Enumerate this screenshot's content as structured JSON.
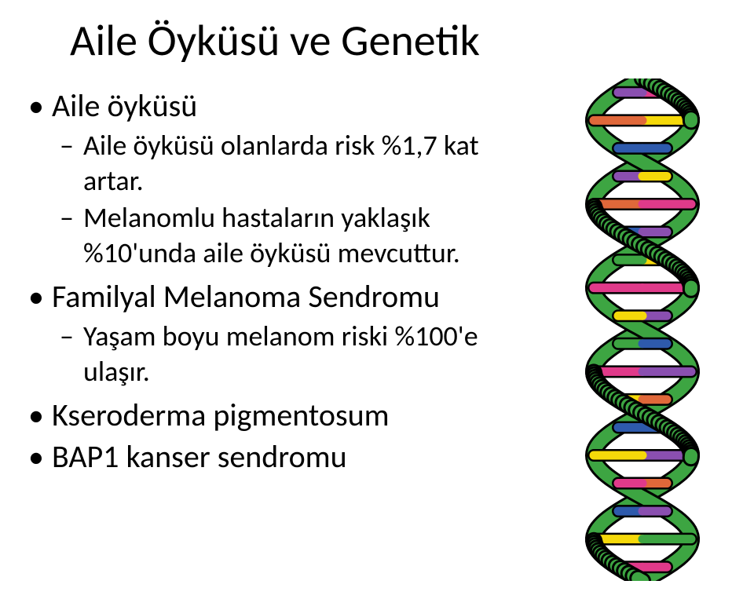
{
  "title": "Aile Öyküsü ve Genetik",
  "items": {
    "b1": "Aile öyküsü",
    "b1a": "Aile öyküsü olanlarda risk %1,7 kat artar.",
    "b1b": "Melanomlu hastaların yaklaşık %10'unda aile öyküsü mevcuttur.",
    "b2": "Familyal Melanoma Sendromu",
    "b2a": "Yaşam boyu  melanom  riski %100'e ulaşır.",
    "b3": "Kseroderma pigmentosum",
    "b4": "BAP1 kanser sendromu"
  },
  "dna": {
    "backbone_colors": [
      "#3da542",
      "#3da542"
    ],
    "rung_colors": [
      "#e03a8a",
      "#f5d90a",
      "#2e5aac",
      "#8a4fb0",
      "#e0683a",
      "#2e5aac",
      "#f5d90a",
      "#e03a8a",
      "#8a4fb0",
      "#3da542"
    ],
    "stroke": "#000000",
    "bg": "#ffffff"
  }
}
